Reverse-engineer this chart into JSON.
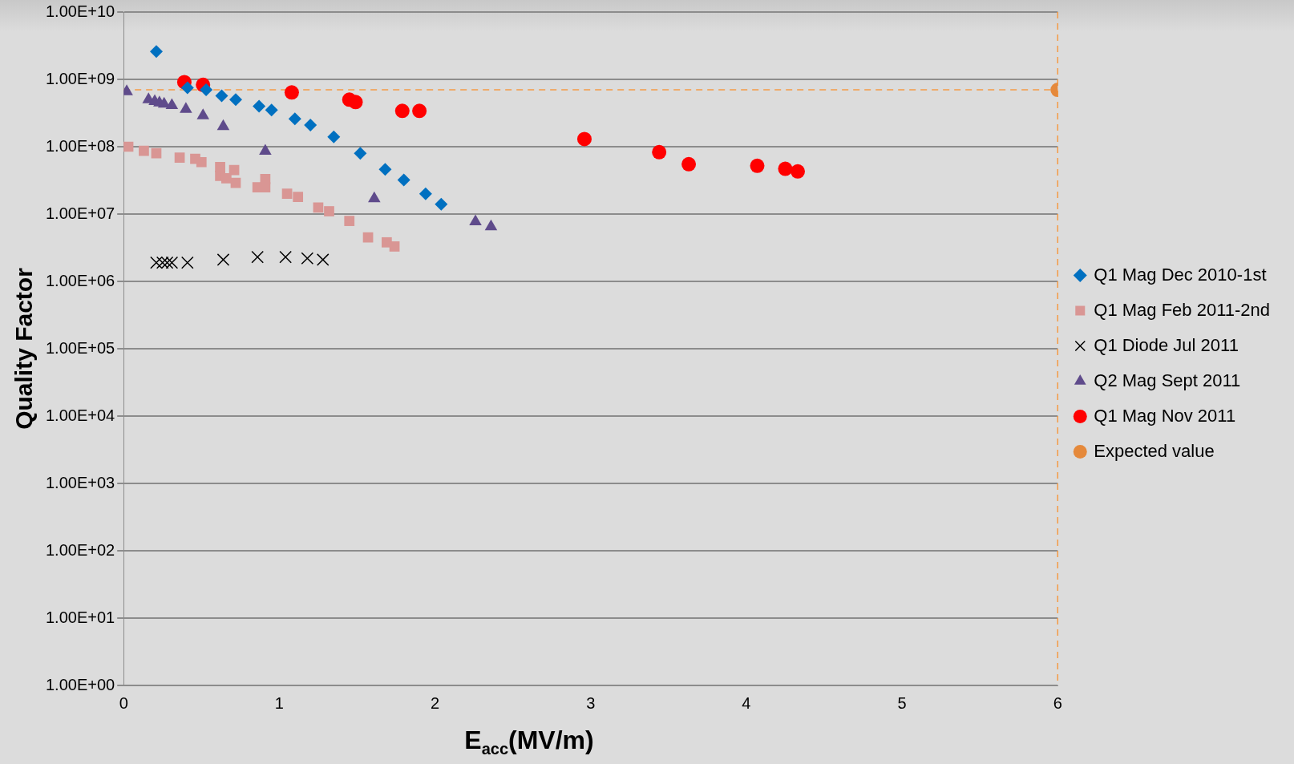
{
  "chart_data": {
    "type": "scatter",
    "xlabel": "E$_{acc}$(MV/m)",
    "ylabel": "Quality Factor",
    "log": "y",
    "grid": "y",
    "legend": "right",
    "xlim": [
      0,
      6
    ],
    "xticks": [
      0,
      1,
      2,
      3,
      4,
      5,
      6
    ],
    "ylim": [
      1,
      10000000000
    ],
    "yticks": [
      {
        "value": 1,
        "label": "1.00E+00"
      },
      {
        "value": 10,
        "label": "1.00E+01"
      },
      {
        "value": 100,
        "label": "1.00E+02"
      },
      {
        "value": 1000,
        "label": "1.00E+03"
      },
      {
        "value": 10000,
        "label": "1.00E+04"
      },
      {
        "value": 100000,
        "label": "1.00E+05"
      },
      {
        "value": 1000000,
        "label": "1.00E+06"
      },
      {
        "value": 10000000,
        "label": "1.00E+07"
      },
      {
        "value": 100000000,
        "label": "1.00E+08"
      },
      {
        "value": 1000000000,
        "label": "1.00E+09"
      },
      {
        "value": 10000000000,
        "label": "1.00E+10"
      }
    ],
    "ref_lines": [
      {
        "axis": "y",
        "value": 700000000,
        "color": "#f59a45",
        "line_style": "dashed"
      },
      {
        "axis": "x",
        "value": 6,
        "color": "#f59a45",
        "line_style": "dashed"
      }
    ],
    "series": [
      {
        "name": "Q1 Mag Dec 2010-1st",
        "color": "#0070c0",
        "marker": "diamond",
        "x": [
          0.21,
          0.41,
          0.53,
          0.63,
          0.72,
          0.87,
          0.95,
          1.1,
          1.2,
          1.35,
          1.52,
          1.68,
          1.8,
          1.94,
          2.04
        ],
        "values": [
          2600000000,
          750000000,
          700000000,
          570000000,
          500000000,
          400000000,
          350000000,
          260000000,
          210000000,
          140000000,
          80000000,
          46000000,
          32000000,
          20000000,
          14000000
        ]
      },
      {
        "name": "Q1 Mag Feb 2011-2nd",
        "color": "#d99694",
        "marker": "square",
        "x": [
          0.03,
          0.13,
          0.21,
          0.36,
          0.46,
          0.5,
          0.62,
          0.62,
          0.71,
          0.66,
          0.72,
          0.86,
          0.91,
          0.91,
          1.05,
          1.12,
          1.25,
          1.32,
          1.45,
          1.57,
          1.69,
          1.74
        ],
        "values": [
          100000000,
          87000000,
          80000000,
          69000000,
          66000000,
          59000000,
          50000000,
          37000000,
          45000000,
          34000000,
          29000000,
          25000000,
          25000000,
          33000000,
          20000000,
          18000000,
          12500000,
          11000000,
          7900000,
          4500000,
          3800000,
          3300000
        ]
      },
      {
        "name": "Q1 Diode Jul 2011",
        "color": "#000000",
        "marker": "cross",
        "x": [
          0.21,
          0.25,
          0.28,
          0.31,
          0.41,
          0.64,
          0.86,
          1.04,
          1.18,
          1.28
        ],
        "values": [
          1900000,
          1900000,
          1900000,
          1900000,
          1900000,
          2100000,
          2300000,
          2300000,
          2200000,
          2100000
        ]
      },
      {
        "name": "Q2 Mag Sept 2011",
        "color": "#5f4b8b",
        "marker": "triangle",
        "x": [
          0.02,
          0.16,
          0.2,
          0.23,
          0.26,
          0.31,
          0.4,
          0.51,
          0.64,
          0.91,
          1.61,
          2.26,
          2.36
        ],
        "values": [
          660000000,
          500000000,
          470000000,
          450000000,
          430000000,
          410000000,
          360000000,
          290000000,
          200000000,
          86000000,
          17000000,
          7700000,
          6500000
        ]
      },
      {
        "name": "Q1 Mag Nov 2011",
        "color": "#ff0000",
        "marker": "circle",
        "x": [
          0.39,
          0.51,
          1.08,
          1.45,
          1.49,
          1.79,
          1.9,
          2.96,
          3.44,
          3.63,
          4.07,
          4.25,
          4.33
        ],
        "values": [
          910000000,
          830000000,
          640000000,
          500000000,
          460000000,
          340000000,
          340000000,
          130000000,
          83000000,
          55000000,
          52000000,
          47000000,
          43000000
        ]
      },
      {
        "name": "Expected value",
        "color": "#e5893b",
        "marker": "circle",
        "x": [
          6
        ],
        "values": [
          700000000
        ]
      }
    ]
  }
}
